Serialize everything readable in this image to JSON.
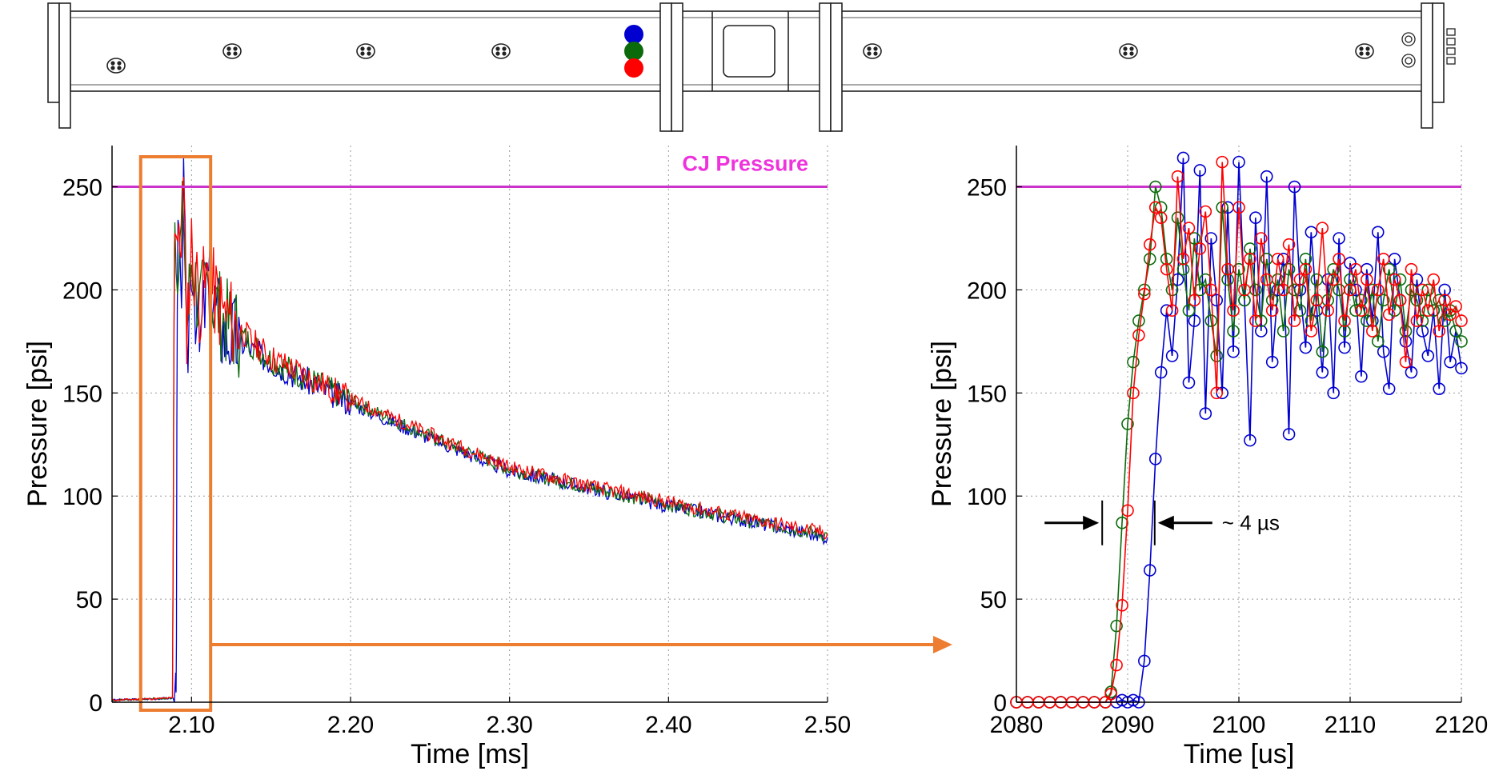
{
  "colors": {
    "ch1": "#0000d0",
    "ch2": "#0b6b0b",
    "ch3": "#ff0000",
    "cj": "#cc33cc",
    "cj_label": "#ee33dd",
    "highlight": "#ed7d31",
    "grid": "#9a9a9a"
  },
  "tube": {
    "sensor_dots": [
      "blue",
      "green",
      "red"
    ]
  },
  "chart_data": [
    {
      "type": "line",
      "xlabel": "Time [ms]",
      "ylabel": "Pressure [psi]",
      "xlim": [
        2.05,
        2.5
      ],
      "ylim": [
        0,
        270
      ],
      "xticks": [
        2.1,
        2.2,
        2.3,
        2.4,
        2.5
      ],
      "xtick_labels": [
        "2.10",
        "2.20",
        "2.30",
        "2.40",
        "2.50"
      ],
      "yticks": [
        0,
        50,
        100,
        150,
        200,
        250
      ],
      "ytick_labels": [
        "0",
        "50",
        "100",
        "150",
        "200",
        "250"
      ],
      "grid": true,
      "reference_line": {
        "label": "CJ Pressure",
        "y": 250
      },
      "highlight_box": {
        "x": [
          2.068,
          2.112
        ]
      },
      "series": [
        {
          "color": "blue",
          "x": [
            2.05,
            2.09,
            2.0905,
            2.091,
            2.0915,
            2.093,
            2.095,
            2.097,
            2.1,
            2.105,
            2.11,
            2.12,
            2.15,
            2.2,
            2.25,
            2.3,
            2.35,
            2.4,
            2.45,
            2.5
          ],
          "y": [
            1,
            2,
            50,
            180,
            230,
            190,
            245,
            160,
            220,
            170,
            205,
            180,
            165,
            145,
            128,
            112,
            104,
            95,
            88,
            80
          ]
        },
        {
          "color": "green",
          "x": [
            2.05,
            2.088,
            2.0885,
            2.089,
            2.0895,
            2.092,
            2.095,
            2.097,
            2.1,
            2.105,
            2.11,
            2.12,
            2.15,
            2.2,
            2.25,
            2.3,
            2.35,
            2.4,
            2.45,
            2.5
          ],
          "y": [
            1,
            2,
            80,
            200,
            235,
            210,
            240,
            180,
            215,
            190,
            200,
            185,
            166,
            146,
            129,
            113,
            104,
            96,
            88,
            81
          ]
        },
        {
          "color": "red",
          "x": [
            2.05,
            2.088,
            2.0885,
            2.089,
            2.0895,
            2.092,
            2.095,
            2.097,
            2.1,
            2.105,
            2.11,
            2.12,
            2.15,
            2.2,
            2.25,
            2.3,
            2.35,
            2.4,
            2.45,
            2.5
          ],
          "y": [
            1,
            2,
            90,
            205,
            240,
            215,
            245,
            185,
            220,
            195,
            205,
            188,
            167,
            147,
            130,
            114,
            105,
            97,
            89,
            82
          ]
        }
      ]
    },
    {
      "type": "line",
      "xlabel": "Time [us]",
      "ylabel": "Pressure [psi]",
      "xlim": [
        2080,
        2120
      ],
      "ylim": [
        0,
        270
      ],
      "xticks": [
        2080,
        2090,
        2100,
        2110,
        2120
      ],
      "xtick_labels": [
        "2080",
        "2090",
        "2100",
        "2110",
        "2120"
      ],
      "yticks": [
        0,
        50,
        100,
        150,
        200,
        250
      ],
      "ytick_labels": [
        "0",
        "50",
        "100",
        "150",
        "200",
        "250"
      ],
      "grid": true,
      "reference_line": {
        "y": 250
      },
      "annotation": {
        "text": "~ 4 µs",
        "x_start": 2088,
        "x_end": 2092,
        "y": 87
      },
      "series": [
        {
          "color": "blue",
          "x": [
            2080,
            2081,
            2082,
            2083,
            2084,
            2085,
            2086,
            2087,
            2088,
            2089,
            2089.5,
            2090,
            2090.5,
            2091,
            2091.5,
            2092,
            2092.5,
            2093,
            2093.5,
            2094,
            2094.5,
            2095,
            2095.5,
            2096,
            2096.5,
            2097,
            2097.5,
            2098,
            2098.5,
            2099,
            2099.5,
            2100,
            2100.5,
            2101,
            2101.5,
            2102,
            2102.5,
            2103,
            2103.5,
            2104,
            2104.5,
            2105,
            2105.5,
            2106,
            2106.5,
            2107,
            2107.5,
            2108,
            2108.5,
            2109,
            2109.5,
            2110,
            2110.5,
            2111,
            2111.5,
            2112,
            2112.5,
            2113,
            2113.5,
            2114,
            2114.5,
            2115,
            2115.5,
            2116,
            2116.5,
            2117,
            2117.5,
            2118,
            2118.5,
            2119,
            2119.5,
            2120
          ],
          "y": [
            0,
            0,
            0,
            0,
            0,
            0,
            0,
            0,
            0,
            0,
            1,
            0,
            1,
            0,
            20,
            64,
            118,
            160,
            190,
            168,
            205,
            264,
            155,
            185,
            258,
            140,
            225,
            195,
            150,
            240,
            170,
            262,
            195,
            127,
            235,
            180,
            255,
            165,
            200,
            215,
            130,
            250,
            200,
            172,
            228,
            190,
            160,
            205,
            150,
            225,
            172,
            213,
            200,
            158,
            210,
            185,
            228,
            170,
            152,
            215,
            195,
            175,
            160,
            205,
            180,
            168,
            190,
            152,
            200,
            165,
            180,
            162
          ]
        },
        {
          "color": "green",
          "x": [
            2080,
            2081,
            2082,
            2083,
            2084,
            2085,
            2086,
            2087,
            2088,
            2088.5,
            2089,
            2089.5,
            2090,
            2090.5,
            2091,
            2091.5,
            2092,
            2092.5,
            2093,
            2093.5,
            2094,
            2094.5,
            2095,
            2095.5,
            2096,
            2096.5,
            2097,
            2097.5,
            2098,
            2098.5,
            2099,
            2099.5,
            2100,
            2100.5,
            2101,
            2101.5,
            2102,
            2102.5,
            2103,
            2103.5,
            2104,
            2104.5,
            2105,
            2105.5,
            2106,
            2106.5,
            2107,
            2107.5,
            2108,
            2108.5,
            2109,
            2109.5,
            2110,
            2110.5,
            2111,
            2111.5,
            2112,
            2112.5,
            2113,
            2113.5,
            2114,
            2114.5,
            2115,
            2115.5,
            2116,
            2116.5,
            2117,
            2117.5,
            2118,
            2118.5,
            2119,
            2119.5,
            2120
          ],
          "y": [
            0,
            0,
            0,
            0,
            0,
            0,
            0,
            0,
            0,
            5,
            37,
            87,
            135,
            165,
            185,
            200,
            215,
            250,
            240,
            215,
            200,
            235,
            210,
            190,
            225,
            200,
            205,
            185,
            168,
            240,
            205,
            180,
            210,
            195,
            220,
            200,
            185,
            215,
            195,
            205,
            180,
            210,
            200,
            190,
            215,
            185,
            205,
            170,
            195,
            210,
            200,
            180,
            205,
            190,
            195,
            185,
            200,
            175,
            195,
            210,
            190,
            205,
            180,
            200,
            195,
            185,
            200,
            190,
            195,
            185,
            190,
            180,
            175
          ]
        },
        {
          "color": "red",
          "x": [
            2080,
            2081,
            2082,
            2083,
            2084,
            2085,
            2086,
            2087,
            2088,
            2088.5,
            2089,
            2089.5,
            2090,
            2090.5,
            2091,
            2091.5,
            2092,
            2092.5,
            2093,
            2093.5,
            2094,
            2094.5,
            2095,
            2095.5,
            2096,
            2096.5,
            2097,
            2097.5,
            2098,
            2098.5,
            2099,
            2099.5,
            2100,
            2100.5,
            2101,
            2101.5,
            2102,
            2102.5,
            2103,
            2103.5,
            2104,
            2104.5,
            2105,
            2105.5,
            2106,
            2106.5,
            2107,
            2107.5,
            2108,
            2108.5,
            2109,
            2109.5,
            2110,
            2110.5,
            2111,
            2111.5,
            2112,
            2112.5,
            2113,
            2113.5,
            2114,
            2114.5,
            2115,
            2115.5,
            2116,
            2116.5,
            2117,
            2117.5,
            2118,
            2118.5,
            2119,
            2119.5,
            2120
          ],
          "y": [
            0,
            0,
            0,
            0,
            0,
            0,
            0,
            0,
            0,
            4,
            18,
            47,
            93,
            150,
            178,
            198,
            222,
            240,
            235,
            210,
            190,
            255,
            215,
            230,
            195,
            220,
            238,
            200,
            150,
            262,
            210,
            190,
            240,
            200,
            215,
            185,
            225,
            205,
            190,
            215,
            200,
            222,
            185,
            205,
            210,
            180,
            195,
            230,
            190,
            205,
            215,
            185,
            200,
            210,
            190,
            205,
            180,
            200,
            215,
            188,
            205,
            195,
            165,
            210,
            185,
            200,
            190,
            205,
            180,
            195,
            188,
            192,
            185
          ]
        }
      ]
    }
  ]
}
